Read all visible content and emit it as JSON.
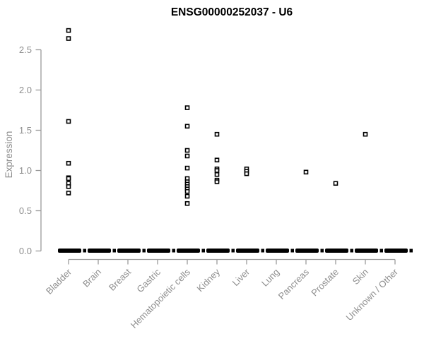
{
  "title": "ENSG00000252037 - U6",
  "chart_data": {
    "type": "scatter",
    "subtype": "strip-plot-by-category",
    "title": "ENSG00000252037 - U6",
    "xlabel": "",
    "ylabel": "Expression",
    "ylim": [
      0,
      2.8
    ],
    "yticks": [
      0.0,
      0.5,
      1.0,
      1.5,
      2.0,
      2.5
    ],
    "grid": false,
    "legend": false,
    "point_style": "open-square",
    "zero_bar_note": "thick black dashed bar = many overlapping samples at expression 0",
    "categories": [
      "Bladder",
      "Brain",
      "Breast",
      "Gastric",
      "Hematopoietic cells",
      "Kidney",
      "Liver",
      "Lung",
      "Pancreas",
      "Prostate",
      "Skin",
      "Unknown / Other"
    ],
    "series": [
      {
        "category": "Bladder",
        "points": [
          2.74,
          2.64,
          1.61,
          1.09,
          0.91,
          0.9,
          0.84,
          0.8,
          0.72
        ],
        "zero_cluster": true
      },
      {
        "category": "Brain",
        "points": [],
        "zero_cluster": true
      },
      {
        "category": "Breast",
        "points": [],
        "zero_cluster": true
      },
      {
        "category": "Gastric",
        "points": [],
        "zero_cluster": true
      },
      {
        "category": "Hematopoietic cells",
        "points": [
          1.78,
          1.55,
          1.25,
          1.18,
          1.03,
          0.9,
          0.86,
          0.83,
          0.8,
          0.77,
          0.74,
          0.68,
          0.59
        ],
        "zero_cluster": true
      },
      {
        "category": "Kidney",
        "points": [
          1.45,
          1.13,
          1.02,
          1.0,
          0.95,
          0.88,
          0.86
        ],
        "zero_cluster": true
      },
      {
        "category": "Liver",
        "points": [
          1.02,
          0.99,
          0.96
        ],
        "zero_cluster": true
      },
      {
        "category": "Lung",
        "points": [],
        "zero_cluster": true
      },
      {
        "category": "Pancreas",
        "points": [
          0.98
        ],
        "zero_cluster": true
      },
      {
        "category": "Prostate",
        "points": [
          0.84
        ],
        "zero_cluster": true
      },
      {
        "category": "Skin",
        "points": [
          1.45
        ],
        "zero_cluster": true
      },
      {
        "category": "Unknown / Other",
        "points": [],
        "zero_cluster": true
      }
    ],
    "colors": {
      "points": "#000000",
      "point_fill": "#ffffff",
      "zero_bar": "#000000",
      "axis_line": "#9a9a9a",
      "tick_text": "#8e8e8e",
      "title_text": "#000000",
      "background": "#ffffff"
    }
  }
}
